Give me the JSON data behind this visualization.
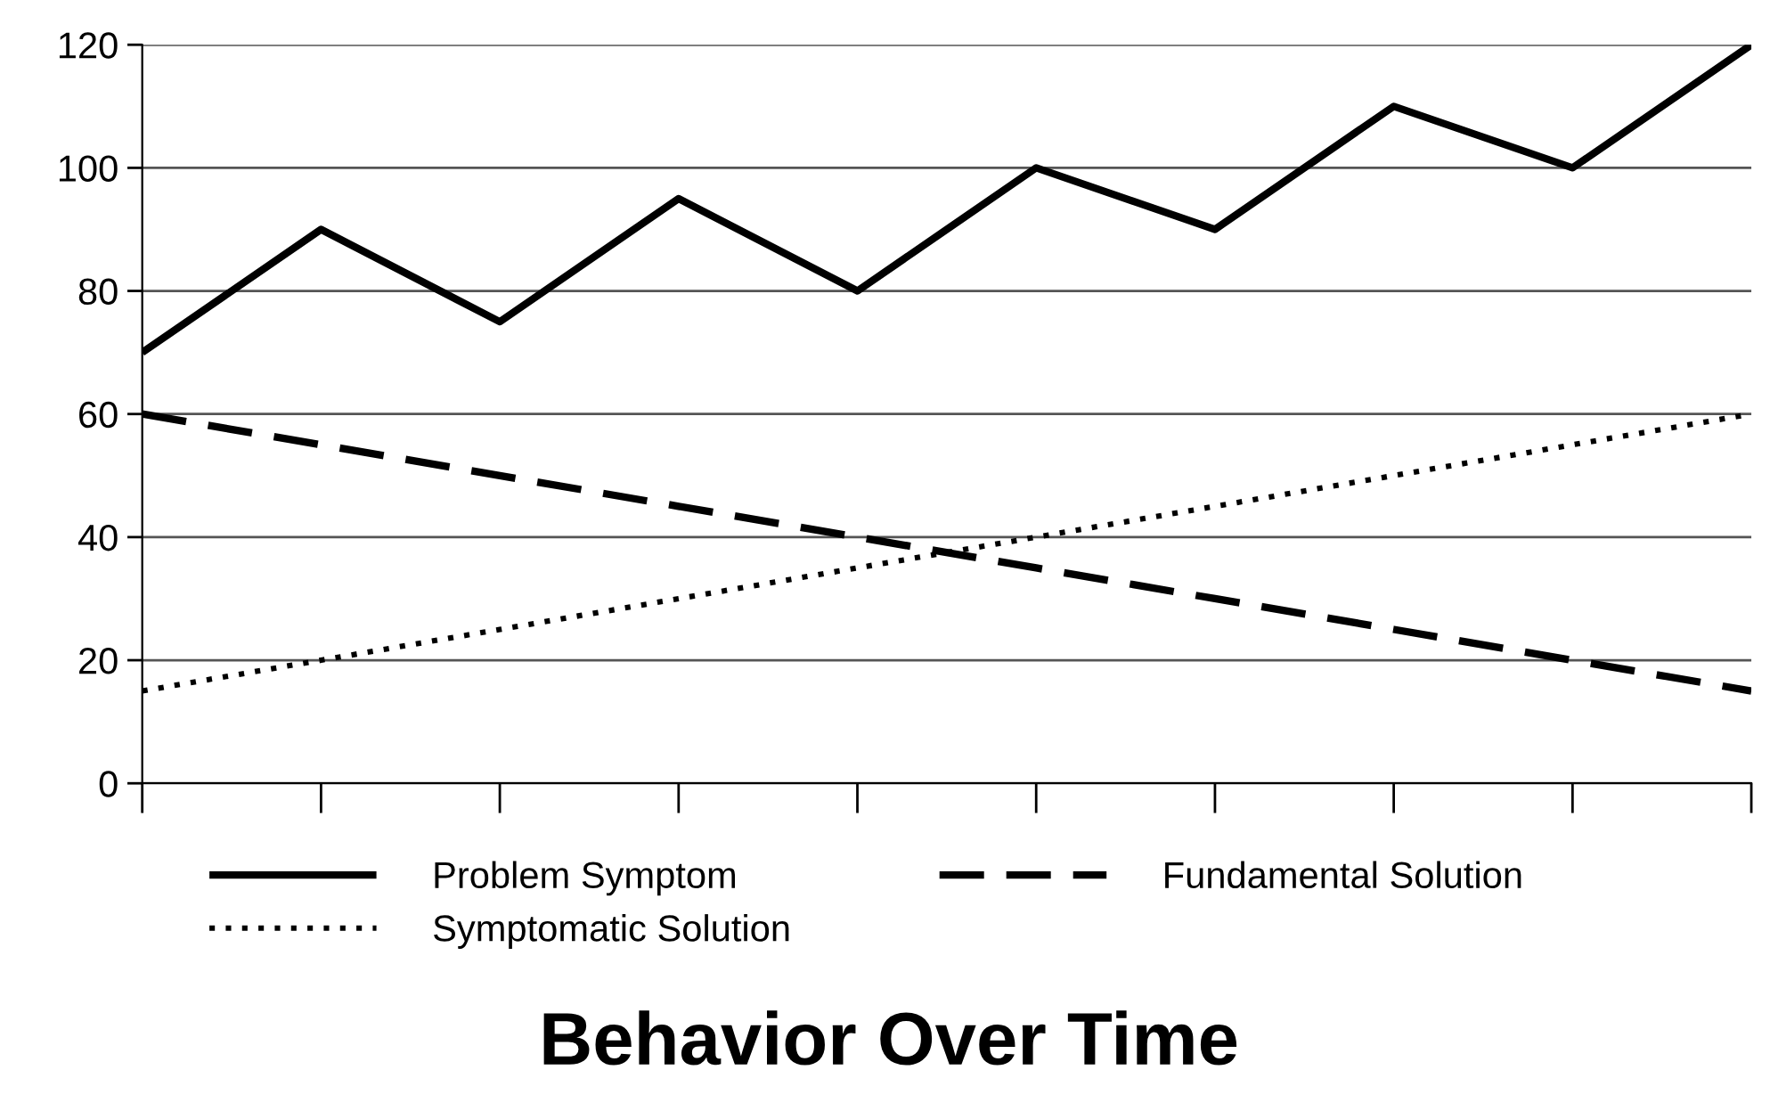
{
  "chart_data": {
    "type": "line",
    "title": "Behavior Over Time",
    "categories": [
      null,
      null,
      null,
      null,
      null,
      null,
      null,
      null,
      null,
      null
    ],
    "series": [
      {
        "name": "Problem Symptom",
        "color": "#000000",
        "line_style": "solid",
        "values": [
          70,
          90,
          75,
          95,
          80,
          100,
          90,
          110,
          100,
          120
        ]
      },
      {
        "name": "Fundamental Solution",
        "color": "#000000",
        "line_style": "dashed",
        "values": [
          60,
          55,
          50,
          45,
          40,
          35,
          30,
          25,
          20,
          15
        ]
      },
      {
        "name": "Symptomatic Solution",
        "color": "#000000",
        "line_style": "dotted",
        "values": [
          15,
          20,
          25,
          30,
          35,
          40,
          45,
          50,
          55,
          60
        ]
      }
    ],
    "ylim": [
      0,
      120
    ],
    "yticks": [
      0,
      20,
      40,
      60,
      80,
      100,
      120
    ],
    "grid": "y",
    "legend": "bottom",
    "tick_labels": "y",
    "marker": "none"
  }
}
